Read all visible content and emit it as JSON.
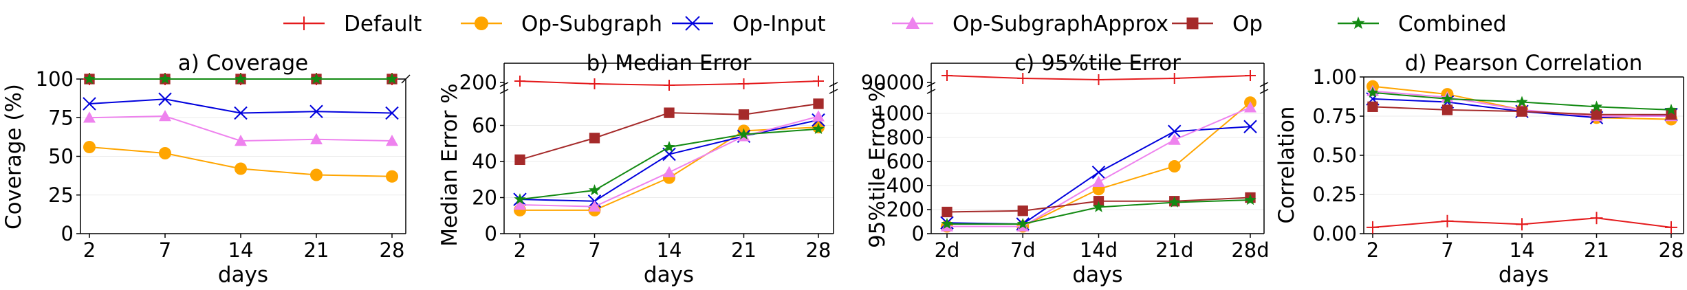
{
  "legend": {
    "placement": "top-center",
    "entries": [
      {
        "name": "Default",
        "color": "#e41a1c",
        "marker": "plus"
      },
      {
        "name": "Op-Subgraph",
        "color": "#ffa500",
        "marker": "circle"
      },
      {
        "name": "Op-Input",
        "color": "#0000dd",
        "marker": "x"
      },
      {
        "name": "Op-SubgraphApprox",
        "color": "#ee82ee",
        "marker": "triangle"
      },
      {
        "name": "Op",
        "color": "#a52a2a",
        "marker": "square"
      },
      {
        "name": "Combined",
        "color": "#138a13",
        "marker": "star"
      }
    ]
  },
  "chart_data": [
    {
      "type": "line",
      "title": "a) Coverage",
      "xlabel": "days",
      "ylabel": "Coverage (%)",
      "categories": [
        "2",
        "7",
        "14",
        "21",
        "28"
      ],
      "ylim": [
        0,
        100
      ],
      "yticks": [
        "0",
        "25",
        "50",
        "75",
        "100"
      ],
      "ytick_values": [
        0,
        25,
        50,
        75,
        100
      ],
      "grid": true,
      "series": [
        {
          "name": "Default",
          "values": [
            100,
            100,
            100,
            100,
            100
          ]
        },
        {
          "name": "Op-Subgraph",
          "values": [
            56,
            52,
            42,
            38,
            37
          ]
        },
        {
          "name": "Op-Input",
          "values": [
            84,
            87,
            78,
            79,
            78
          ]
        },
        {
          "name": "Op-SubgraphApprox",
          "values": [
            75,
            76,
            60,
            61,
            60
          ]
        },
        {
          "name": "Op",
          "values": [
            100,
            100,
            100,
            100,
            100
          ]
        },
        {
          "name": "Combined",
          "values": [
            100,
            100,
            100,
            100,
            100
          ]
        }
      ]
    },
    {
      "type": "line",
      "title": "b) Median Error",
      "xlabel": "days",
      "ylabel": "Median Error %",
      "categories": [
        "2",
        "7",
        "14",
        "21",
        "28"
      ],
      "ylim": [
        0,
        80
      ],
      "yticks": [
        "0",
        "20",
        "40",
        "60"
      ],
      "ytick_values": [
        0,
        20,
        40,
        60
      ],
      "broken_axis": {
        "upper_tick": "200"
      },
      "grid": true,
      "series": [
        {
          "name": "Default",
          "values": [
            null,
            null,
            null,
            null,
            null
          ],
          "note": "drawn above the axis break"
        },
        {
          "name": "Op-Subgraph",
          "values": [
            13,
            13,
            31,
            57,
            59
          ]
        },
        {
          "name": "Op-Input",
          "values": [
            19,
            18,
            44,
            54,
            63
          ]
        },
        {
          "name": "Op-SubgraphApprox",
          "values": [
            16,
            15,
            34,
            54,
            65
          ]
        },
        {
          "name": "Op",
          "values": [
            41,
            53,
            67,
            66,
            72
          ]
        },
        {
          "name": "Combined",
          "values": [
            19,
            24,
            48,
            55,
            58
          ]
        }
      ]
    },
    {
      "type": "line",
      "title": "c) 95%tile Error",
      "xlabel": "days",
      "ylabel": "95%tile Error %",
      "categories": [
        "2d",
        "7d",
        "14d",
        "21d",
        "28d"
      ],
      "ylim": [
        0,
        1200
      ],
      "yticks": [
        "0",
        "200",
        "400",
        "600",
        "800",
        "1000"
      ],
      "ytick_values": [
        0,
        200,
        400,
        600,
        800,
        1000
      ],
      "broken_axis": {
        "upper_tick": "90000"
      },
      "grid": true,
      "series": [
        {
          "name": "Default",
          "values": [
            null,
            null,
            null,
            null,
            null
          ],
          "note": "drawn above the axis break"
        },
        {
          "name": "Op-Subgraph",
          "values": [
            60,
            60,
            370,
            560,
            1090
          ]
        },
        {
          "name": "Op-Input",
          "values": [
            90,
            80,
            510,
            850,
            890
          ]
        },
        {
          "name": "Op-SubgraphApprox",
          "values": [
            60,
            60,
            430,
            780,
            1050
          ]
        },
        {
          "name": "Op",
          "values": [
            180,
            190,
            270,
            270,
            300
          ]
        },
        {
          "name": "Combined",
          "values": [
            80,
            80,
            220,
            260,
            280
          ]
        }
      ]
    },
    {
      "type": "line",
      "title": "d) Pearson Correlation",
      "xlabel": "days",
      "ylabel": "Correlation",
      "categories": [
        "2",
        "7",
        "14",
        "21",
        "28"
      ],
      "ylim": [
        0,
        1.0
      ],
      "yticks": [
        "0.00",
        "0.25",
        "0.50",
        "0.75",
        "1.00"
      ],
      "ytick_values": [
        0,
        0.25,
        0.5,
        0.75,
        1.0
      ],
      "grid": true,
      "series": [
        {
          "name": "Default",
          "values": [
            0.04,
            0.08,
            0.06,
            0.1,
            0.04
          ]
        },
        {
          "name": "Op-Subgraph",
          "values": [
            0.94,
            0.89,
            0.79,
            0.74,
            0.73
          ]
        },
        {
          "name": "Op-Input",
          "values": [
            0.86,
            0.84,
            0.78,
            0.74,
            0.76
          ]
        },
        {
          "name": "Op-SubgraphApprox",
          "values": [
            0.91,
            0.87,
            0.79,
            0.75,
            0.75
          ]
        },
        {
          "name": "Op",
          "values": [
            0.81,
            0.79,
            0.78,
            0.76,
            0.76
          ]
        },
        {
          "name": "Combined",
          "values": [
            0.9,
            0.86,
            0.84,
            0.81,
            0.79
          ]
        }
      ]
    }
  ]
}
